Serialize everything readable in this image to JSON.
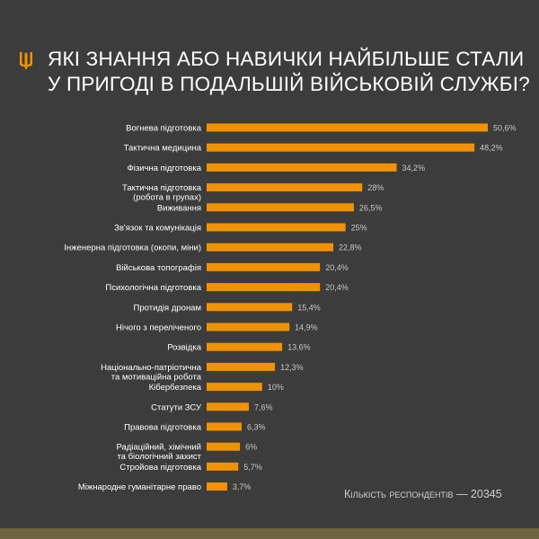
{
  "header": {
    "title_lines": [
      "ЯКІ ЗНАННЯ АБО НАВИЧКИ НАЙБІЛЬШЕ СТАЛИ",
      "У ПРИГОДІ В ПОДАЛЬШІЙ ВІЙСЬКОВІЙ СЛУЖБІ?"
    ],
    "logo_icon": "trident-icon"
  },
  "footer": {
    "respondents": "Кількість респондентів — 20345"
  },
  "colors": {
    "background": "#3c3c3c",
    "bar": "#f39200",
    "band": "#6b6640",
    "logo": "#f39200"
  },
  "chart_data": {
    "type": "bar",
    "orientation": "horizontal",
    "title": "ЯКІ ЗНАННЯ АБО НАВИЧКИ НАЙБІЛЬШЕ СТАЛИ У ПРИГОДІ В ПОДАЛЬШІЙ ВІЙСЬКОВІЙ СЛУЖБІ?",
    "categories": [
      [
        "Вогнева підготовка"
      ],
      [
        "Тактична медицина"
      ],
      [
        "Фізична підготовка"
      ],
      [
        "Тактична підготовка",
        "(робота в групах)"
      ],
      [
        "Виживання"
      ],
      [
        "Зв'язок та комунікація"
      ],
      [
        "Інженерна підготовка (окопи, міни)"
      ],
      [
        "Військова топографія"
      ],
      [
        "Психологічна підготовка"
      ],
      [
        "Протидія дронам"
      ],
      [
        "Нічого з переліченого"
      ],
      [
        "Розвідка"
      ],
      [
        "Національно-патріотична",
        "та мотиваційна робота"
      ],
      [
        "Кібербезпека"
      ],
      [
        "Статути ЗСУ"
      ],
      [
        "Правова підготовка"
      ],
      [
        "Радіаційний, хімічний",
        "та біологічний захист"
      ],
      [
        "Стройова підготовка"
      ],
      [
        "Міжнародне гуманітарне право"
      ]
    ],
    "values": [
      50.6,
      48.2,
      34.2,
      28,
      26.5,
      25,
      22.8,
      20.4,
      20.4,
      15.4,
      14.9,
      13.6,
      12.3,
      10,
      7.6,
      6.3,
      6,
      5.7,
      3.7
    ],
    "value_labels": [
      "50,6%",
      "48,2%",
      "34,2%",
      "28%",
      "26,5%",
      "25%",
      "22,8%",
      "20,4%",
      "20,4%",
      "15,4%",
      "14,9%",
      "13,6%",
      "12,3%",
      "10%",
      "7,6%",
      "6,3%",
      "6%",
      "5,7%",
      "3,7%"
    ],
    "unit": "%",
    "grid": false,
    "axes_visible": false
  }
}
